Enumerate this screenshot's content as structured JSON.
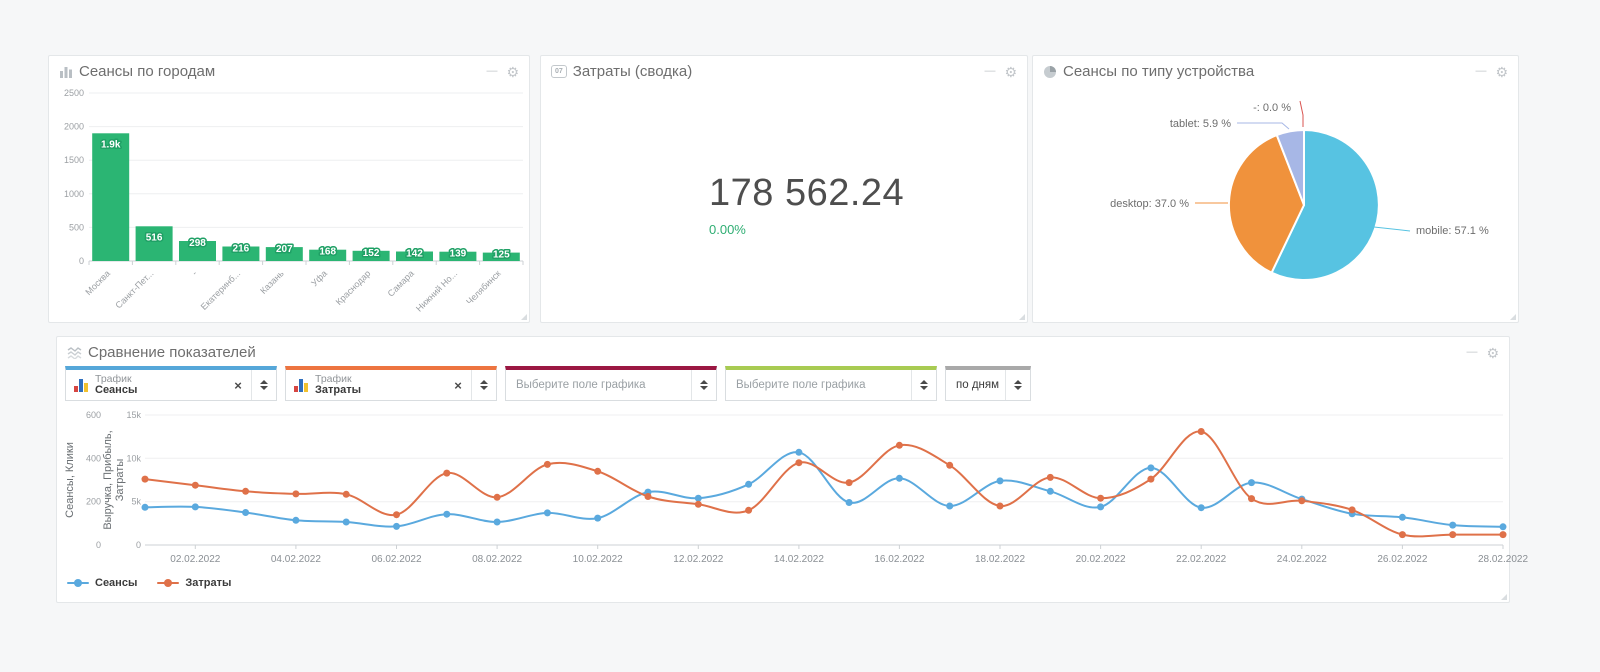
{
  "window": {
    "minimize_glyph": "—",
    "settings_glyph": "⚙"
  },
  "cards": {
    "cities": {
      "title": "Сеансы по городам"
    },
    "costs": {
      "title": "Затраты (сводка)",
      "icon_text": "07",
      "value": "178 562.24",
      "change": "0.00%",
      "change_color": "#2fae73"
    },
    "devices": {
      "title": "Сеансы по типу устройства"
    },
    "compare": {
      "title": "Сравнение показателей",
      "selectors": [
        {
          "kind": "metric",
          "accent": "#55a7d9",
          "group": "Трафик",
          "metric": "Сеансы",
          "close": "×"
        },
        {
          "kind": "metric",
          "accent": "#ed7440",
          "group": "Трафик",
          "metric": "Затраты",
          "close": "×"
        },
        {
          "kind": "placeholder",
          "accent": "#9b1742",
          "placeholder": "Выберите поле графика"
        },
        {
          "kind": "placeholder",
          "accent": "#a8cb52",
          "placeholder": "Выберите поле графика"
        },
        {
          "kind": "period",
          "accent": "#a9a9a9",
          "value": "по дням"
        }
      ],
      "legend": [
        {
          "label": "Сеансы",
          "color": "#5aa9de"
        },
        {
          "label": "Затраты",
          "color": "#df7149"
        }
      ]
    }
  },
  "chart_data": [
    {
      "type": "bar",
      "title": "Сеансы по городам",
      "categories": [
        "Москва",
        "Санкт-Пет...",
        "-",
        "Екатеринб...",
        "Казань",
        "Уфа",
        "Краснодар",
        "Самара",
        "Нижний Но...",
        "Челябинск"
      ],
      "values": [
        1900,
        516,
        298,
        216,
        207,
        168,
        152,
        142,
        139,
        125
      ],
      "value_labels": [
        "1.9k",
        "516",
        "298",
        "216",
        "207",
        "168",
        "152",
        "142",
        "139",
        "125"
      ],
      "ylim": [
        0,
        2500
      ],
      "yticks": [
        0,
        500,
        1000,
        1500,
        2000,
        2500
      ],
      "bar_color": "#2bb573",
      "grid": true
    },
    {
      "type": "pie",
      "title": "Сеансы по типу устройства",
      "clockwise_from_top": true,
      "slices": [
        {
          "name": "mobile",
          "pct": 57.1,
          "color": "#57c3e2",
          "label": "mobile: 57.1 %"
        },
        {
          "name": "desktop",
          "pct": 37.0,
          "color": "#f0923c",
          "label": "desktop: 37.0 %"
        },
        {
          "name": "tablet",
          "pct": 5.9,
          "color": "#a7b7e6",
          "label": "tablet: 5.9 %"
        },
        {
          "name": "-",
          "pct": 0.0,
          "color": "#d9534f",
          "label": "-: 0.0 %"
        }
      ]
    },
    {
      "type": "line",
      "title": "Сравнение показателей",
      "smooth": true,
      "x_points": 28,
      "x_tick_labels": [
        "02.02.2022",
        "04.02.2022",
        "06.02.2022",
        "08.02.2022",
        "10.02.2022",
        "12.02.2022",
        "14.02.2022",
        "16.02.2022",
        "18.02.2022",
        "20.02.2022",
        "22.02.2022",
        "24.02.2022",
        "26.02.2022",
        "28.02.2022"
      ],
      "axes": [
        {
          "title": "Сеансы, Клики",
          "ticks": [
            "0",
            "200",
            "400",
            "600"
          ],
          "max": 600
        },
        {
          "title_lines": [
            "Выручка, Прибыль,",
            "Затраты"
          ],
          "ticks": [
            "0",
            "5k",
            "10k",
            "15k"
          ],
          "max": 15000
        }
      ],
      "series": [
        {
          "name": "Сеансы",
          "color": "#5aa9de",
          "axis": 0,
          "values": [
            174,
            176,
            150,
            114,
            106,
            86,
            142,
            106,
            148,
            124,
            244,
            216,
            280,
            428,
            196,
            308,
            180,
            296,
            248,
            176,
            356,
            172,
            288,
            212,
            144,
            128,
            92,
            84
          ]
        },
        {
          "name": "Затраты",
          "color": "#df7149",
          "axis": 1,
          "values": [
            7600,
            6900,
            6200,
            5900,
            5850,
            3500,
            8300,
            5500,
            9300,
            8500,
            5600,
            4700,
            4000,
            9500,
            7200,
            11500,
            9200,
            4500,
            7800,
            5400,
            7600,
            13100,
            5350,
            5100,
            4050,
            1200,
            1200,
            1200
          ]
        }
      ],
      "legend_position": "bottom-left",
      "grid": true
    }
  ]
}
